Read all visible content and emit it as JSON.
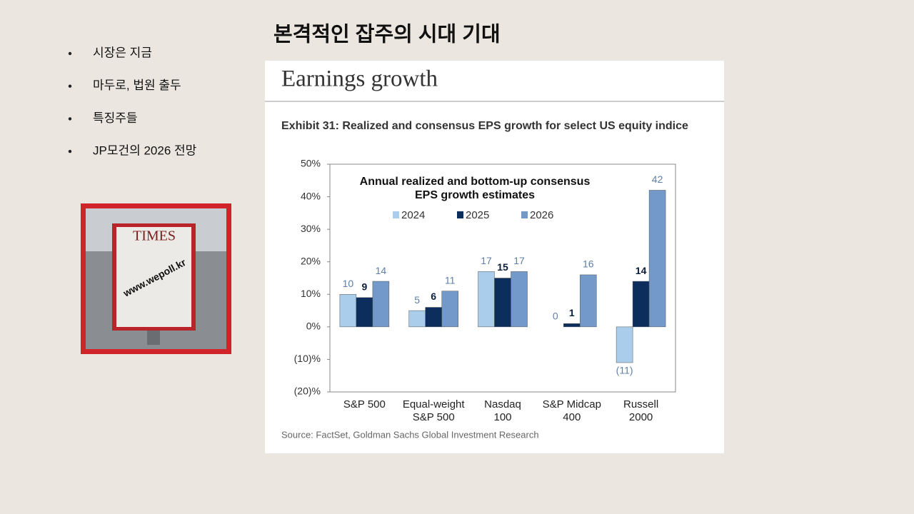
{
  "slide": {
    "title": "본격적인 잡주의 시대 기대",
    "bullets": [
      "시장은 지금",
      "마두로, 법원 출두",
      "특징주들",
      "JP모건의 2026 전망"
    ],
    "poster": {
      "brand": "TIMES",
      "watermark": "www.wepoll.kr"
    }
  },
  "chart_data": {
    "type": "bar",
    "title": "Earnings growth",
    "subtitle": "Exhibit 31: Realized and consensus EPS growth for select US equity indice",
    "inner_title": [
      "Annual realized and bottom-up consensus",
      "EPS growth estimates"
    ],
    "categories": [
      [
        "S&P 500"
      ],
      [
        "Equal-weight",
        "S&P 500"
      ],
      [
        "Nasdaq",
        "100"
      ],
      [
        "S&P Midcap",
        "400"
      ],
      [
        "Russell",
        "2000"
      ]
    ],
    "series": [
      {
        "name": "2024",
        "color": "#a9cdea",
        "values": [
          10,
          5,
          17,
          0,
          -11
        ],
        "value_labels": [
          "10",
          "5",
          "17",
          "0",
          "(11)"
        ]
      },
      {
        "name": "2025",
        "color": "#0b2e5c",
        "values": [
          9,
          6,
          15,
          1,
          14
        ]
      },
      {
        "name": "2026",
        "color": "#7299c9",
        "values": [
          14,
          11,
          17,
          16,
          42
        ]
      }
    ],
    "ylim": [
      -20,
      50
    ],
    "yticks": [
      {
        "value": -20,
        "label": "(20)%"
      },
      {
        "value": -10,
        "label": "(10)%"
      },
      {
        "value": 0,
        "label": "0%"
      },
      {
        "value": 10,
        "label": "10%"
      },
      {
        "value": 20,
        "label": "20%"
      },
      {
        "value": 30,
        "label": "30%"
      },
      {
        "value": 40,
        "label": "40%"
      },
      {
        "value": 50,
        "label": "50%"
      }
    ],
    "source": "Source: FactSet, Goldman Sachs Global Investment Research"
  }
}
